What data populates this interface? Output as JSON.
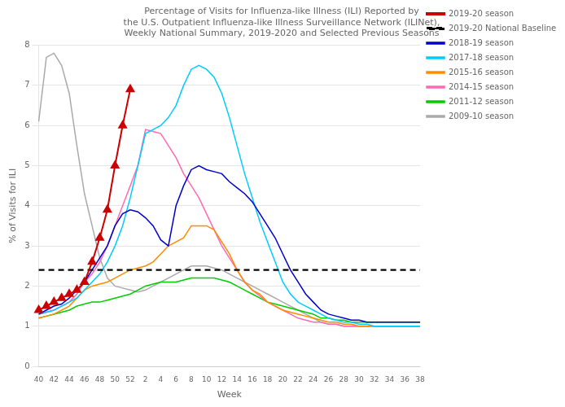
{
  "chart_data": {
    "type": "line",
    "title": "Percentage of Visits for Influenza-like Illness (ILI) Reported by\nthe U.S. Outpatient Influenza-like Illness Surveillance Network (ILINet),\nWeekly National Summary, 2019-2020 and Selected Previous Seasons",
    "x_label": "Week",
    "y_label": "% of Visits for ILI",
    "categories": [
      "40",
      null,
      "42",
      null,
      "44",
      null,
      "46",
      null,
      "48",
      null,
      "50",
      null,
      "52",
      null,
      "2",
      null,
      "4",
      null,
      "6",
      null,
      "8",
      null,
      "10",
      null,
      "12",
      null,
      "14",
      null,
      "16",
      null,
      "18",
      null,
      "20",
      null,
      "22",
      null,
      "24",
      null,
      "26",
      null,
      "28",
      null,
      "30",
      null,
      "32",
      null,
      "34",
      null,
      "36",
      null,
      "38"
    ],
    "ylim": [
      0,
      8
    ],
    "yticks": [
      0,
      1,
      2,
      3,
      4,
      5,
      6,
      7,
      8
    ],
    "grid": "y",
    "legend": "upper right",
    "series": [
      {
        "name": "2018-19 season",
        "color": "#0000CD",
        "line_style": "solid",
        "values": [
          1.3,
          1.4,
          1.5,
          1.55,
          1.7,
          1.9,
          2.1,
          2.4,
          2.7,
          3.0,
          3.5,
          3.8,
          3.9,
          3.85,
          3.7,
          3.5,
          3.15,
          3.0,
          4.0,
          4.5,
          4.9,
          5.0,
          4.9,
          4.85,
          4.8,
          4.6,
          4.45,
          4.3,
          4.1,
          3.8,
          3.5,
          3.2,
          2.8,
          2.4,
          2.1,
          1.8,
          1.6,
          1.4,
          1.3,
          1.25,
          1.2,
          1.15,
          1.15,
          1.1,
          1.1,
          1.1,
          1.1,
          1.1,
          1.1,
          1.1,
          1.1
        ]
      },
      {
        "name": "2017-18 season",
        "color": "#00CCFF",
        "line_style": "solid",
        "values": [
          1.3,
          1.35,
          1.4,
          1.5,
          1.6,
          1.7,
          1.9,
          2.1,
          2.3,
          2.6,
          3.0,
          3.5,
          4.2,
          5.0,
          5.8,
          5.9,
          6.0,
          6.2,
          6.5,
          7.0,
          7.4,
          7.5,
          7.4,
          7.2,
          6.8,
          6.2,
          5.5,
          4.8,
          4.2,
          3.6,
          3.1,
          2.6,
          2.1,
          1.8,
          1.6,
          1.5,
          1.4,
          1.3,
          1.2,
          1.15,
          1.1,
          1.1,
          1.05,
          1.05,
          1.0,
          1.0,
          1.0,
          1.0,
          1.0,
          1.0,
          1.0
        ]
      },
      {
        "name": "2015-16 season",
        "color": "#FF8C00",
        "line_style": "solid",
        "values": [
          1.2,
          1.25,
          1.3,
          1.4,
          1.5,
          1.7,
          1.9,
          2.0,
          2.05,
          2.1,
          2.2,
          2.3,
          2.4,
          2.45,
          2.5,
          2.6,
          2.8,
          3.0,
          3.1,
          3.2,
          3.5,
          3.5,
          3.5,
          3.4,
          3.1,
          2.8,
          2.4,
          2.1,
          1.9,
          1.8,
          1.6,
          1.5,
          1.4,
          1.35,
          1.3,
          1.25,
          1.2,
          1.15,
          1.1,
          1.1,
          1.05,
          1.05,
          1.0,
          1.0,
          1.0,
          1.0,
          1.0,
          1.0,
          1.0,
          1.0,
          1.0
        ]
      },
      {
        "name": "2014-15 season",
        "color": "#FF69B4",
        "line_style": "solid",
        "values": [
          1.3,
          1.35,
          1.4,
          1.5,
          1.6,
          1.8,
          2.1,
          2.3,
          2.6,
          3.0,
          3.5,
          4.0,
          4.5,
          5.0,
          5.9,
          5.85,
          5.8,
          5.5,
          5.2,
          4.8,
          4.5,
          4.2,
          3.8,
          3.4,
          3.0,
          2.7,
          2.4,
          2.1,
          1.9,
          1.75,
          1.6,
          1.5,
          1.4,
          1.3,
          1.2,
          1.15,
          1.1,
          1.1,
          1.05,
          1.05,
          1.0,
          1.0,
          1.0,
          1.0,
          1.0,
          1.0,
          1.0,
          1.0,
          1.0,
          1.0,
          1.0
        ]
      },
      {
        "name": "2011-12 season",
        "color": "#00CC00",
        "line_style": "solid",
        "values": [
          1.2,
          1.25,
          1.3,
          1.35,
          1.4,
          1.5,
          1.55,
          1.6,
          1.6,
          1.65,
          1.7,
          1.75,
          1.8,
          1.9,
          2.0,
          2.05,
          2.1,
          2.1,
          2.1,
          2.15,
          2.2,
          2.2,
          2.2,
          2.2,
          2.15,
          2.1,
          2.0,
          1.9,
          1.8,
          1.7,
          1.6,
          1.55,
          1.5,
          1.45,
          1.4,
          1.35,
          1.3,
          1.2,
          1.2,
          1.15,
          1.15,
          1.1,
          1.1,
          1.1,
          1.1,
          1.1,
          1.1,
          1.1,
          1.1,
          1.1,
          1.1
        ]
      },
      {
        "name": "2009-10 season",
        "color": "#A9A9A9",
        "line_style": "solid",
        "values": [
          6.1,
          7.7,
          7.8,
          7.5,
          6.8,
          5.5,
          4.3,
          3.5,
          2.7,
          2.2,
          2.0,
          1.95,
          1.9,
          1.85,
          1.9,
          2.0,
          2.1,
          2.2,
          2.3,
          2.4,
          2.5,
          2.5,
          2.5,
          2.45,
          2.4,
          2.3,
          2.2,
          2.1,
          2.0,
          1.9,
          1.8,
          1.7,
          1.6,
          1.5,
          1.4,
          1.3,
          1.2,
          1.1,
          1.05,
          1.05,
          1.0,
          1.0,
          1.0,
          1.0,
          1.0,
          1.0,
          1.0,
          1.0,
          1.0,
          1.0,
          1.0
        ]
      },
      {
        "name": "2019-20 National Baseline",
        "color": "#000000",
        "line_style": "dashed",
        "values": [
          2.4,
          2.4,
          2.4,
          2.4,
          2.4,
          2.4,
          2.4,
          2.4,
          2.4,
          2.4,
          2.4,
          2.4,
          2.4,
          2.4,
          2.4,
          2.4,
          2.4,
          2.4,
          2.4,
          2.4,
          2.4,
          2.4,
          2.4,
          2.4,
          2.4,
          2.4,
          2.4,
          2.4,
          2.4,
          2.4,
          2.4,
          2.4,
          2.4,
          2.4,
          2.4,
          2.4,
          2.4,
          2.4,
          2.4,
          2.4,
          2.4,
          2.4,
          2.4,
          2.4,
          2.4,
          2.4,
          2.4,
          2.4,
          2.4,
          2.4,
          2.4
        ]
      },
      {
        "name": "2019-20 season",
        "color": "#CC0000",
        "line_style": "solid",
        "marker": "triangle",
        "values": [
          1.4,
          1.5,
          1.6,
          1.7,
          1.8,
          1.9,
          2.1,
          2.6,
          3.2,
          3.9,
          5.0,
          6.0,
          6.9,
          null,
          null,
          null,
          null,
          null,
          null,
          null,
          null,
          null,
          null,
          null,
          null,
          null,
          null,
          null,
          null,
          null,
          null,
          null,
          null,
          null,
          null,
          null,
          null,
          null,
          null,
          null,
          null,
          null,
          null,
          null,
          null,
          null,
          null,
          null,
          null,
          null,
          null
        ]
      }
    ]
  }
}
